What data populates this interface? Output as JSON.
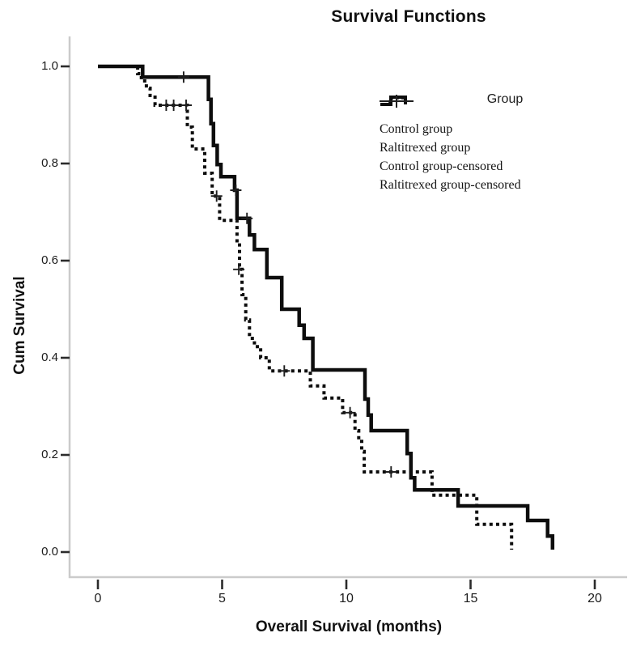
{
  "title": "Survival Functions",
  "y_axis": {
    "label": "Cum Survival",
    "ticks": [
      {
        "label": "1.0",
        "value": 1.0
      },
      {
        "label": "0.8",
        "value": 0.8
      },
      {
        "label": "0.6",
        "value": 0.6
      },
      {
        "label": "0.4",
        "value": 0.4
      },
      {
        "label": "0.2",
        "value": 0.2
      },
      {
        "label": "0.0",
        "value": 0.0
      }
    ]
  },
  "x_axis": {
    "label": "Overall Survival (months)",
    "ticks": [
      {
        "label": "0",
        "value": 0
      },
      {
        "label": "5",
        "value": 5
      },
      {
        "label": "10",
        "value": 10
      },
      {
        "label": "15",
        "value": 15
      },
      {
        "label": "20",
        "value": 20
      }
    ]
  },
  "legend": {
    "title": "Group",
    "entries": [
      {
        "label": "Control group",
        "sample": "dotted-step",
        "color": "#0d0d0d"
      },
      {
        "label": "Raltitrexed group",
        "sample": "solid-step",
        "color": "#0d0d0d"
      },
      {
        "label": "Control group-censored",
        "sample": "censor-line",
        "color": "#8a8a8a"
      },
      {
        "label": "Raltitrexed group-censored",
        "sample": "censor-line",
        "color": "#1f1f1f"
      }
    ]
  },
  "colors": {
    "curve": "#0d0d0d",
    "axis_line": "#cbcbcb",
    "tick_mark": "#2b2b2b",
    "censor_mark": "#1f1f1f"
  },
  "chart_data": {
    "type": "line",
    "subtype": "kaplan-meier-step",
    "title": "Survival Functions",
    "xlabel": "Overall Survival (months)",
    "ylabel": "Cum Survival",
    "xlim": [
      0,
      20
    ],
    "ylim": [
      0.0,
      1.0
    ],
    "x_tick_step": 5,
    "y_tick_step": 0.2,
    "grid": false,
    "legend_position": "upper right",
    "series": [
      {
        "name": "Control group",
        "style": "dotted",
        "steps": [
          [
            0,
            1.0
          ],
          [
            1.6,
            0.985
          ],
          [
            1.75,
            0.97
          ],
          [
            1.95,
            0.955
          ],
          [
            2.1,
            0.94
          ],
          [
            2.3,
            0.92
          ],
          [
            3.6,
            0.875
          ],
          [
            3.8,
            0.83
          ],
          [
            4.3,
            0.78
          ],
          [
            4.6,
            0.733
          ],
          [
            4.9,
            0.683
          ],
          [
            5.6,
            0.637
          ],
          [
            5.7,
            0.582
          ],
          [
            5.8,
            0.53
          ],
          [
            5.95,
            0.478
          ],
          [
            6.1,
            0.44
          ],
          [
            6.3,
            0.423
          ],
          [
            6.55,
            0.4
          ],
          [
            6.9,
            0.373
          ],
          [
            8.55,
            0.342
          ],
          [
            9.1,
            0.317
          ],
          [
            9.85,
            0.287
          ],
          [
            10.35,
            0.25
          ],
          [
            10.5,
            0.228
          ],
          [
            10.62,
            0.207
          ],
          [
            10.72,
            0.165
          ],
          [
            13.45,
            0.117
          ],
          [
            15.25,
            0.057
          ],
          [
            16.65,
            0.005
          ]
        ],
        "censored": [
          [
            2.75,
            0.92
          ],
          [
            3.05,
            0.92
          ],
          [
            3.55,
            0.92
          ],
          [
            4.78,
            0.733
          ],
          [
            5.67,
            0.582
          ],
          [
            7.5,
            0.373
          ],
          [
            10.15,
            0.287
          ],
          [
            11.8,
            0.165
          ]
        ]
      },
      {
        "name": "Raltitrexed group",
        "style": "solid",
        "steps": [
          [
            0,
            1.0
          ],
          [
            1.8,
            0.978
          ],
          [
            4.45,
            0.932
          ],
          [
            4.55,
            0.882
          ],
          [
            4.65,
            0.837
          ],
          [
            4.8,
            0.798
          ],
          [
            4.95,
            0.773
          ],
          [
            5.5,
            0.745
          ],
          [
            5.6,
            0.687
          ],
          [
            6.1,
            0.653
          ],
          [
            6.3,
            0.623
          ],
          [
            6.8,
            0.565
          ],
          [
            7.4,
            0.5
          ],
          [
            8.1,
            0.467
          ],
          [
            8.3,
            0.44
          ],
          [
            8.65,
            0.375
          ],
          [
            10.75,
            0.315
          ],
          [
            10.88,
            0.282
          ],
          [
            11.0,
            0.25
          ],
          [
            12.45,
            0.203
          ],
          [
            12.6,
            0.153
          ],
          [
            12.75,
            0.128
          ],
          [
            14.5,
            0.095
          ],
          [
            17.3,
            0.065
          ],
          [
            18.1,
            0.033
          ],
          [
            18.3,
            0.005
          ]
        ],
        "censored": [
          [
            3.45,
            0.978
          ],
          [
            5.55,
            0.745
          ],
          [
            6.0,
            0.687
          ]
        ]
      }
    ]
  }
}
